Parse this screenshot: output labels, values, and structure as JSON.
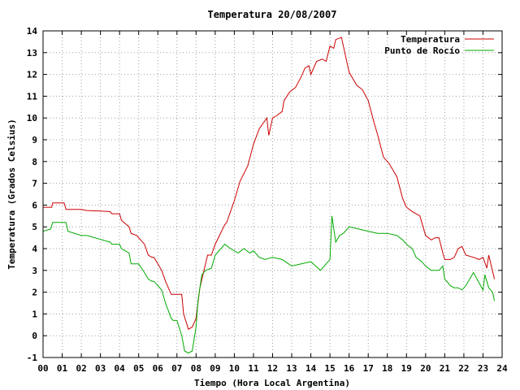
{
  "chart_data": {
    "type": "line",
    "title": "Temperatura 20/08/2007",
    "xlabel": "Tiempo (Hora Local Argentina)",
    "ylabel": "Temperatura (Grados Celsius)",
    "xlim": [
      0,
      24
    ],
    "ylim": [
      -1,
      14
    ],
    "x_ticks": [
      "00",
      "01",
      "02",
      "03",
      "04",
      "05",
      "06",
      "07",
      "08",
      "09",
      "10",
      "11",
      "12",
      "13",
      "14",
      "15",
      "16",
      "17",
      "18",
      "19",
      "20",
      "21",
      "22",
      "23",
      "24"
    ],
    "y_ticks": [
      -1,
      0,
      1,
      2,
      3,
      4,
      5,
      6,
      7,
      8,
      9,
      10,
      11,
      12,
      13,
      14
    ],
    "grid": true,
    "legend_position": "top-right",
    "series": [
      {
        "name": "Temperatura",
        "color": "#cc0000",
        "x": [
          0.0,
          0.45,
          0.5,
          1.1,
          1.2,
          2.0,
          2.3,
          3.5,
          3.6,
          4.0,
          4.1,
          4.5,
          4.6,
          4.9,
          5.0,
          5.3,
          5.5,
          5.7,
          5.8,
          6.2,
          6.4,
          6.7,
          6.8,
          7.25,
          7.35,
          7.6,
          7.8,
          8.0,
          8.2,
          8.6,
          8.8,
          9.0,
          9.5,
          9.6,
          10.0,
          10.3,
          10.7,
          11.0,
          11.3,
          11.7,
          11.8,
          12.0,
          12.2,
          12.5,
          12.6,
          12.9,
          13.2,
          13.5,
          13.7,
          13.9,
          14.0,
          14.3,
          14.6,
          14.8,
          15.0,
          15.2,
          15.3,
          15.6,
          15.9,
          16.0,
          16.4,
          16.7,
          17.0,
          17.3,
          17.5,
          17.8,
          18.1,
          18.5,
          18.8,
          19.0,
          19.3,
          19.7,
          20.0,
          20.3,
          20.5,
          20.7,
          20.9,
          21.0,
          21.3,
          21.5,
          21.7,
          21.9,
          22.1,
          22.5,
          22.8,
          23.0,
          23.2,
          23.3,
          23.6
        ],
        "values": [
          5.9,
          5.9,
          6.1,
          6.1,
          5.8,
          5.8,
          5.75,
          5.7,
          5.6,
          5.6,
          5.3,
          5.0,
          4.7,
          4.6,
          4.5,
          4.2,
          3.7,
          3.6,
          3.6,
          3.0,
          2.5,
          1.9,
          1.9,
          1.9,
          1.0,
          0.3,
          0.4,
          0.8,
          2.2,
          3.7,
          3.7,
          4.2,
          5.1,
          5.2,
          6.2,
          7.1,
          7.8,
          8.8,
          9.5,
          10.0,
          9.2,
          10.0,
          10.1,
          10.3,
          10.8,
          11.2,
          11.4,
          11.9,
          12.3,
          12.4,
          12.0,
          12.6,
          12.7,
          12.6,
          13.3,
          13.2,
          13.6,
          13.7,
          12.5,
          12.1,
          11.5,
          11.3,
          10.8,
          9.8,
          9.2,
          8.2,
          7.9,
          7.3,
          6.3,
          5.9,
          5.7,
          5.5,
          4.6,
          4.4,
          4.5,
          4.5,
          3.8,
          3.5,
          3.5,
          3.6,
          4.0,
          4.1,
          3.7,
          3.6,
          3.5,
          3.6,
          3.1,
          3.7,
          2.6
        ]
      },
      {
        "name": "Punto de Rocío",
        "color": "#00aa00",
        "x": [
          0.0,
          0.4,
          0.5,
          1.2,
          1.3,
          2.0,
          2.3,
          3.5,
          3.6,
          4.0,
          4.1,
          4.5,
          4.6,
          4.9,
          5.0,
          5.3,
          5.5,
          5.7,
          5.8,
          6.2,
          6.4,
          6.7,
          6.8,
          7.0,
          7.25,
          7.4,
          7.6,
          7.8,
          8.0,
          8.1,
          8.3,
          8.5,
          8.8,
          9.0,
          9.5,
          9.8,
          10.2,
          10.5,
          10.8,
          11.0,
          11.3,
          11.6,
          12.0,
          12.5,
          13.0,
          13.5,
          14.0,
          14.5,
          15.0,
          15.1,
          15.3,
          15.5,
          15.7,
          16.0,
          16.5,
          17.0,
          17.5,
          18.0,
          18.5,
          18.8,
          19.0,
          19.3,
          19.5,
          19.8,
          20.0,
          20.3,
          20.5,
          20.7,
          20.9,
          21.0,
          21.3,
          21.5,
          21.7,
          21.9,
          22.1,
          22.5,
          23.0,
          23.1,
          23.3,
          23.5,
          23.6
        ],
        "values": [
          4.8,
          4.9,
          5.2,
          5.2,
          4.8,
          4.6,
          4.6,
          4.3,
          4.2,
          4.2,
          4.0,
          3.8,
          3.3,
          3.3,
          3.3,
          2.9,
          2.6,
          2.5,
          2.5,
          2.1,
          1.5,
          0.8,
          0.7,
          0.7,
          0.0,
          -0.7,
          -0.8,
          -0.7,
          0.4,
          1.6,
          2.8,
          3.0,
          3.1,
          3.7,
          4.2,
          4.0,
          3.8,
          4.0,
          3.8,
          3.9,
          3.6,
          3.5,
          3.6,
          3.5,
          3.2,
          3.3,
          3.4,
          3.0,
          3.5,
          5.5,
          4.3,
          4.6,
          4.7,
          5.0,
          4.9,
          4.8,
          4.7,
          4.7,
          4.6,
          4.4,
          4.2,
          4.0,
          3.6,
          3.4,
          3.2,
          3.0,
          3.0,
          3.0,
          3.2,
          2.6,
          2.3,
          2.2,
          2.2,
          2.1,
          2.3,
          2.9,
          2.1,
          2.8,
          2.2,
          2.0,
          1.6
        ]
      }
    ]
  }
}
